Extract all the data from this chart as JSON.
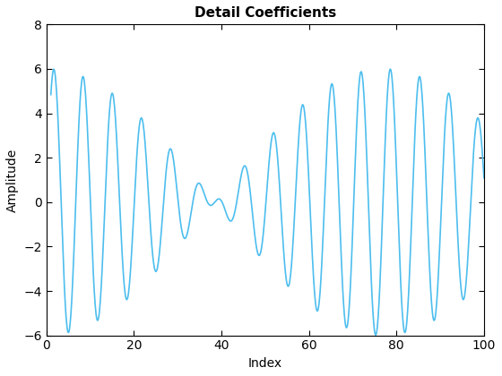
{
  "title": "Detail Coefficients",
  "xlabel": "Index",
  "ylabel": "Amplitude",
  "xlim": [
    0,
    100
  ],
  "ylim": [
    -6,
    8
  ],
  "yticks": [
    -6,
    -4,
    -2,
    0,
    2,
    4,
    6,
    8
  ],
  "xticks": [
    0,
    20,
    40,
    60,
    80,
    100
  ],
  "line_color": "#4DBEEE",
  "line_width": 1.2,
  "bg_color": "#ffffff",
  "title_fontsize": 11,
  "label_fontsize": 10,
  "n_points": 1000,
  "x_start": 1,
  "x_end": 100,
  "amp1": 3.0,
  "amp2": 3.0,
  "freq1": 0.143,
  "freq2": 0.156
}
